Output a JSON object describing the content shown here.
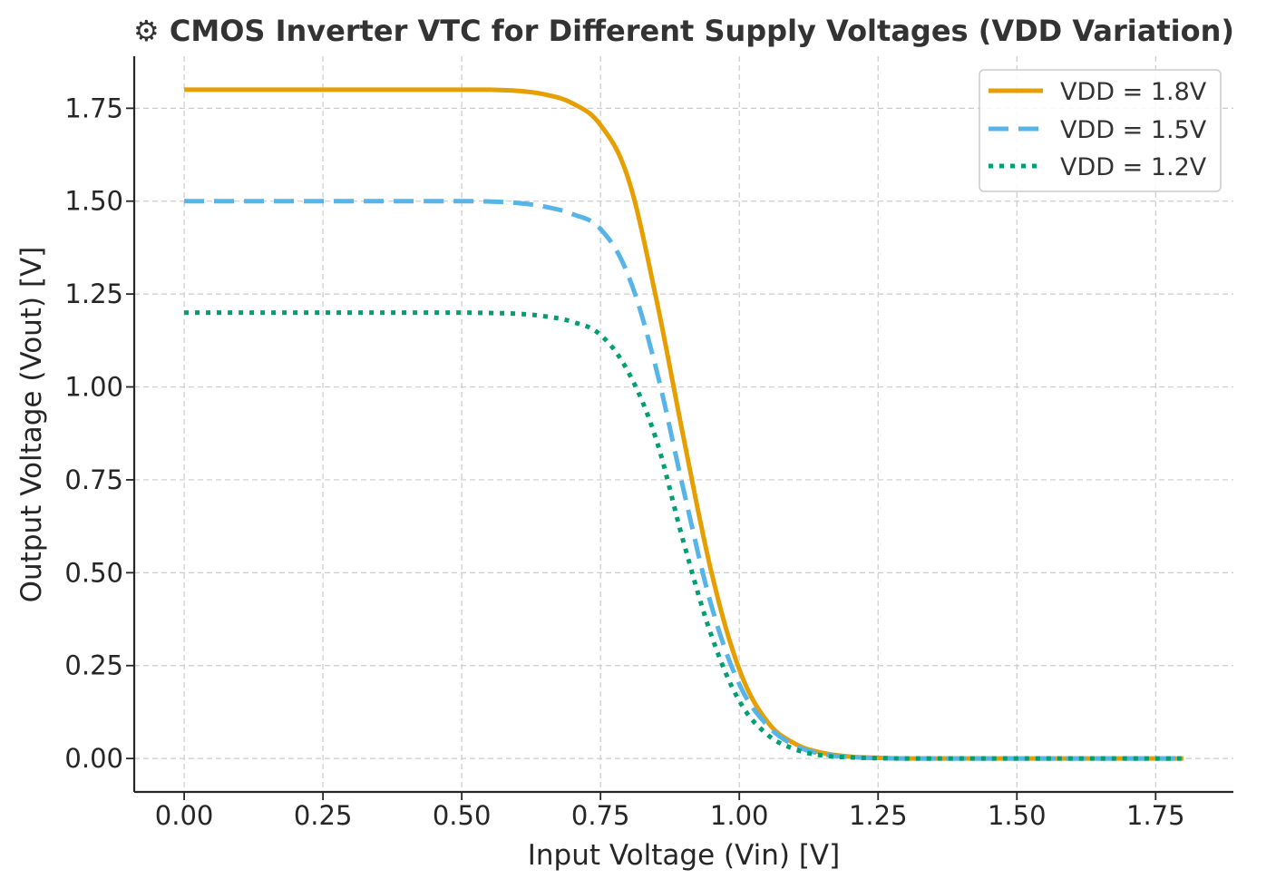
{
  "chart_data": {
    "type": "line",
    "title": "⚙ CMOS Inverter VTC for Different Supply Voltages (VDD Variation)",
    "xlabel": "Input Voltage (Vin) [V]",
    "ylabel": "Output Voltage (Vout) [V]",
    "xlim": [
      -0.09,
      1.89
    ],
    "ylim": [
      -0.09,
      1.89
    ],
    "x_ticks": [
      0.0,
      0.25,
      0.5,
      0.75,
      1.0,
      1.25,
      1.5,
      1.75
    ],
    "x_tick_labels": [
      "0.00",
      "0.25",
      "0.50",
      "0.75",
      "1.00",
      "1.25",
      "1.50",
      "1.75"
    ],
    "y_ticks": [
      0.0,
      0.25,
      0.5,
      0.75,
      1.0,
      1.25,
      1.5,
      1.75
    ],
    "y_tick_labels": [
      "0.00",
      "0.25",
      "0.50",
      "0.75",
      "1.00",
      "1.25",
      "1.50",
      "1.75"
    ],
    "grid": true,
    "legend_position": "top-right",
    "x": [
      0.0,
      0.1,
      0.2,
      0.3,
      0.4,
      0.5,
      0.55,
      0.6,
      0.65,
      0.7,
      0.75,
      0.8,
      0.85,
      0.9,
      0.95,
      1.0,
      1.05,
      1.1,
      1.15,
      1.2,
      1.25,
      1.3,
      1.4,
      1.5,
      1.6,
      1.7,
      1.8
    ],
    "series": [
      {
        "name": "VDD = 1.8V",
        "color": "#E69F00",
        "dash": "solid",
        "values": [
          1.8,
          1.8,
          1.8,
          1.8,
          1.8,
          1.8,
          1.8,
          1.797,
          1.787,
          1.763,
          1.705,
          1.56,
          1.24,
          0.86,
          0.5,
          0.24,
          0.1,
          0.04,
          0.015,
          0.005,
          0.002,
          0.0,
          0.0,
          0.0,
          0.0,
          0.0,
          0.0
        ]
      },
      {
        "name": "VDD = 1.5V",
        "color": "#56B4E9",
        "dash": "dashed",
        "values": [
          1.5,
          1.5,
          1.5,
          1.5,
          1.5,
          1.5,
          1.499,
          1.495,
          1.485,
          1.465,
          1.425,
          1.3,
          1.05,
          0.72,
          0.41,
          0.2,
          0.09,
          0.035,
          0.012,
          0.004,
          0.001,
          0.0,
          0.0,
          0.0,
          0.0,
          0.0,
          0.0
        ]
      },
      {
        "name": "VDD = 1.2V",
        "color": "#009E73",
        "dash": "dotted",
        "values": [
          1.2,
          1.2,
          1.2,
          1.2,
          1.2,
          1.2,
          1.199,
          1.197,
          1.19,
          1.175,
          1.14,
          1.04,
          0.86,
          0.58,
          0.33,
          0.155,
          0.065,
          0.025,
          0.008,
          0.003,
          0.001,
          0.0,
          0.0,
          0.0,
          0.0,
          0.0,
          0.0
        ]
      }
    ]
  }
}
